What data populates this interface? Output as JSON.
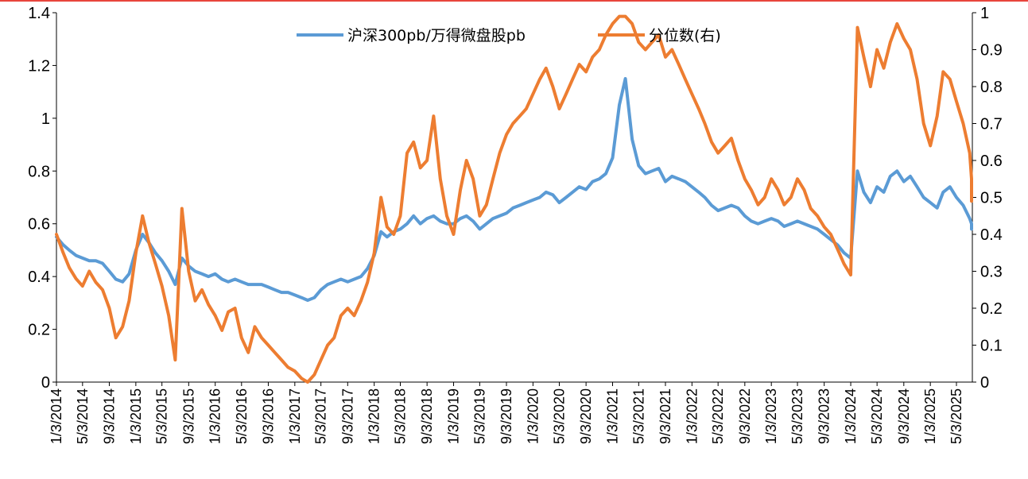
{
  "chart_data": {
    "type": "line",
    "title": "",
    "legend": {
      "placement": "top-center"
    },
    "grid": false,
    "x_ticks": [
      "1/3/2014",
      "5/3/2014",
      "9/3/2014",
      "1/3/2015",
      "5/3/2015",
      "9/3/2015",
      "1/3/2016",
      "5/3/2016",
      "9/3/2016",
      "1/3/2017",
      "5/3/2017",
      "9/3/2017",
      "1/3/2018",
      "5/3/2018",
      "9/3/2018",
      "1/3/2019",
      "5/3/2019",
      "9/3/2019",
      "1/3/2020",
      "5/3/2020",
      "9/3/2020",
      "1/3/2021",
      "5/3/2021",
      "9/3/2021",
      "1/3/2022",
      "5/3/2022",
      "9/3/2022",
      "1/3/2023",
      "5/3/2023",
      "9/3/2023",
      "1/3/2024",
      "5/3/2024",
      "9/3/2024",
      "1/3/2025",
      "5/3/2025"
    ],
    "y_left": {
      "lim": [
        0,
        1.4
      ],
      "ticks": [
        "0",
        "0.2",
        "0.4",
        "0.6",
        "0.8",
        "1",
        "1.2",
        "1.4"
      ]
    },
    "y_right": {
      "lim": [
        0,
        1
      ],
      "ticks": [
        "0",
        "0.1",
        "0.2",
        "0.3",
        "0.4",
        "0.5",
        "0.6",
        "0.7",
        "0.8",
        "0.9",
        "1"
      ]
    },
    "series": [
      {
        "name": "沪深300pb/万得微盘股pb",
        "axis": "left",
        "color": "#5b9bd5",
        "points": [
          [
            "2014-01",
            0.55
          ],
          [
            "2014-02",
            0.52
          ],
          [
            "2014-03",
            0.5
          ],
          [
            "2014-04",
            0.48
          ],
          [
            "2014-05",
            0.47
          ],
          [
            "2014-06",
            0.46
          ],
          [
            "2014-07",
            0.46
          ],
          [
            "2014-08",
            0.45
          ],
          [
            "2014-09",
            0.42
          ],
          [
            "2014-10",
            0.39
          ],
          [
            "2014-11",
            0.38
          ],
          [
            "2014-12",
            0.41
          ],
          [
            "2015-01",
            0.5
          ],
          [
            "2015-02",
            0.56
          ],
          [
            "2015-03",
            0.53
          ],
          [
            "2015-04",
            0.49
          ],
          [
            "2015-05",
            0.46
          ],
          [
            "2015-06",
            0.42
          ],
          [
            "2015-07",
            0.37
          ],
          [
            "2015-08",
            0.47
          ],
          [
            "2015-09",
            0.44
          ],
          [
            "2015-10",
            0.42
          ],
          [
            "2015-11",
            0.41
          ],
          [
            "2015-12",
            0.4
          ],
          [
            "2016-01",
            0.41
          ],
          [
            "2016-02",
            0.39
          ],
          [
            "2016-03",
            0.38
          ],
          [
            "2016-04",
            0.39
          ],
          [
            "2016-05",
            0.38
          ],
          [
            "2016-06",
            0.37
          ],
          [
            "2016-07",
            0.37
          ],
          [
            "2016-08",
            0.37
          ],
          [
            "2016-09",
            0.36
          ],
          [
            "2016-10",
            0.35
          ],
          [
            "2016-11",
            0.34
          ],
          [
            "2016-12",
            0.34
          ],
          [
            "2017-01",
            0.33
          ],
          [
            "2017-02",
            0.32
          ],
          [
            "2017-03",
            0.31
          ],
          [
            "2017-04",
            0.32
          ],
          [
            "2017-05",
            0.35
          ],
          [
            "2017-06",
            0.37
          ],
          [
            "2017-07",
            0.38
          ],
          [
            "2017-08",
            0.39
          ],
          [
            "2017-09",
            0.38
          ],
          [
            "2017-10",
            0.39
          ],
          [
            "2017-11",
            0.4
          ],
          [
            "2017-12",
            0.43
          ],
          [
            "2018-01",
            0.48
          ],
          [
            "2018-02",
            0.57
          ],
          [
            "2018-03",
            0.55
          ],
          [
            "2018-04",
            0.57
          ],
          [
            "2018-05",
            0.58
          ],
          [
            "2018-06",
            0.6
          ],
          [
            "2018-07",
            0.63
          ],
          [
            "2018-08",
            0.6
          ],
          [
            "2018-09",
            0.62
          ],
          [
            "2018-10",
            0.63
          ],
          [
            "2018-11",
            0.61
          ],
          [
            "2018-12",
            0.6
          ],
          [
            "2019-01",
            0.6
          ],
          [
            "2019-02",
            0.62
          ],
          [
            "2019-03",
            0.63
          ],
          [
            "2019-04",
            0.61
          ],
          [
            "2019-05",
            0.58
          ],
          [
            "2019-06",
            0.6
          ],
          [
            "2019-07",
            0.62
          ],
          [
            "2019-08",
            0.63
          ],
          [
            "2019-09",
            0.64
          ],
          [
            "2019-10",
            0.66
          ],
          [
            "2019-11",
            0.67
          ],
          [
            "2019-12",
            0.68
          ],
          [
            "2020-01",
            0.69
          ],
          [
            "2020-02",
            0.7
          ],
          [
            "2020-03",
            0.72
          ],
          [
            "2020-04",
            0.71
          ],
          [
            "2020-05",
            0.68
          ],
          [
            "2020-06",
            0.7
          ],
          [
            "2020-07",
            0.72
          ],
          [
            "2020-08",
            0.74
          ],
          [
            "2020-09",
            0.73
          ],
          [
            "2020-10",
            0.76
          ],
          [
            "2020-11",
            0.77
          ],
          [
            "2020-12",
            0.79
          ],
          [
            "2021-01",
            0.85
          ],
          [
            "2021-02",
            1.05
          ],
          [
            "2021-03",
            1.15
          ],
          [
            "2021-04",
            0.92
          ],
          [
            "2021-05",
            0.82
          ],
          [
            "2021-06",
            0.79
          ],
          [
            "2021-07",
            0.8
          ],
          [
            "2021-08",
            0.81
          ],
          [
            "2021-09",
            0.76
          ],
          [
            "2021-10",
            0.78
          ],
          [
            "2021-11",
            0.77
          ],
          [
            "2021-12",
            0.76
          ],
          [
            "2022-01",
            0.74
          ],
          [
            "2022-02",
            0.72
          ],
          [
            "2022-03",
            0.7
          ],
          [
            "2022-04",
            0.67
          ],
          [
            "2022-05",
            0.65
          ],
          [
            "2022-06",
            0.66
          ],
          [
            "2022-07",
            0.67
          ],
          [
            "2022-08",
            0.66
          ],
          [
            "2022-09",
            0.63
          ],
          [
            "2022-10",
            0.61
          ],
          [
            "2022-11",
            0.6
          ],
          [
            "2022-12",
            0.61
          ],
          [
            "2023-01",
            0.62
          ],
          [
            "2023-02",
            0.61
          ],
          [
            "2023-03",
            0.59
          ],
          [
            "2023-04",
            0.6
          ],
          [
            "2023-05",
            0.61
          ],
          [
            "2023-06",
            0.6
          ],
          [
            "2023-07",
            0.59
          ],
          [
            "2023-08",
            0.58
          ],
          [
            "2023-09",
            0.56
          ],
          [
            "2023-10",
            0.54
          ],
          [
            "2023-11",
            0.52
          ],
          [
            "2023-12",
            0.49
          ],
          [
            "2024-01",
            0.47
          ],
          [
            "2024-02",
            0.8
          ],
          [
            "2024-03",
            0.72
          ],
          [
            "2024-04",
            0.68
          ],
          [
            "2024-05",
            0.74
          ],
          [
            "2024-06",
            0.72
          ],
          [
            "2024-07",
            0.78
          ],
          [
            "2024-08",
            0.8
          ],
          [
            "2024-09",
            0.76
          ],
          [
            "2024-10",
            0.78
          ],
          [
            "2024-11",
            0.74
          ],
          [
            "2024-12",
            0.7
          ],
          [
            "2025-01",
            0.68
          ],
          [
            "2025-02",
            0.66
          ],
          [
            "2025-03",
            0.72
          ],
          [
            "2025-04",
            0.74
          ],
          [
            "2025-05",
            0.7
          ],
          [
            "2025-06",
            0.67
          ],
          [
            "2025-07",
            0.62
          ],
          [
            "2025-08",
            0.6
          ],
          [
            "2025-09",
            0.58
          ]
        ]
      },
      {
        "name": "分位数(右)",
        "axis": "right",
        "color": "#ed7d31",
        "points": [
          [
            "2014-01",
            0.4
          ],
          [
            "2014-02",
            0.35
          ],
          [
            "2014-03",
            0.31
          ],
          [
            "2014-04",
            0.28
          ],
          [
            "2014-05",
            0.26
          ],
          [
            "2014-06",
            0.3
          ],
          [
            "2014-07",
            0.27
          ],
          [
            "2014-08",
            0.25
          ],
          [
            "2014-09",
            0.2
          ],
          [
            "2014-10",
            0.12
          ],
          [
            "2014-11",
            0.15
          ],
          [
            "2014-12",
            0.22
          ],
          [
            "2015-01",
            0.35
          ],
          [
            "2015-02",
            0.45
          ],
          [
            "2015-03",
            0.38
          ],
          [
            "2015-04",
            0.32
          ],
          [
            "2015-05",
            0.26
          ],
          [
            "2015-06",
            0.18
          ],
          [
            "2015-07",
            0.06
          ],
          [
            "2015-08",
            0.47
          ],
          [
            "2015-09",
            0.3
          ],
          [
            "2015-10",
            0.22
          ],
          [
            "2015-11",
            0.25
          ],
          [
            "2015-12",
            0.21
          ],
          [
            "2016-01",
            0.18
          ],
          [
            "2016-02",
            0.14
          ],
          [
            "2016-03",
            0.19
          ],
          [
            "2016-04",
            0.2
          ],
          [
            "2016-05",
            0.12
          ],
          [
            "2016-06",
            0.08
          ],
          [
            "2016-07",
            0.15
          ],
          [
            "2016-08",
            0.12
          ],
          [
            "2016-09",
            0.1
          ],
          [
            "2016-10",
            0.08
          ],
          [
            "2016-11",
            0.06
          ],
          [
            "2016-12",
            0.04
          ],
          [
            "2017-01",
            0.03
          ],
          [
            "2017-02",
            0.01
          ],
          [
            "2017-03",
            0.0
          ],
          [
            "2017-04",
            0.02
          ],
          [
            "2017-05",
            0.06
          ],
          [
            "2017-06",
            0.1
          ],
          [
            "2017-07",
            0.12
          ],
          [
            "2017-08",
            0.18
          ],
          [
            "2017-09",
            0.2
          ],
          [
            "2017-10",
            0.18
          ],
          [
            "2017-11",
            0.22
          ],
          [
            "2017-12",
            0.27
          ],
          [
            "2018-01",
            0.35
          ],
          [
            "2018-02",
            0.5
          ],
          [
            "2018-03",
            0.42
          ],
          [
            "2018-04",
            0.4
          ],
          [
            "2018-05",
            0.45
          ],
          [
            "2018-06",
            0.62
          ],
          [
            "2018-07",
            0.65
          ],
          [
            "2018-08",
            0.58
          ],
          [
            "2018-09",
            0.6
          ],
          [
            "2018-10",
            0.72
          ],
          [
            "2018-11",
            0.55
          ],
          [
            "2018-12",
            0.45
          ],
          [
            "2019-01",
            0.4
          ],
          [
            "2019-02",
            0.52
          ],
          [
            "2019-03",
            0.6
          ],
          [
            "2019-04",
            0.55
          ],
          [
            "2019-05",
            0.45
          ],
          [
            "2019-06",
            0.48
          ],
          [
            "2019-07",
            0.55
          ],
          [
            "2019-08",
            0.62
          ],
          [
            "2019-09",
            0.67
          ],
          [
            "2019-10",
            0.7
          ],
          [
            "2019-11",
            0.72
          ],
          [
            "2019-12",
            0.74
          ],
          [
            "2020-01",
            0.78
          ],
          [
            "2020-02",
            0.82
          ],
          [
            "2020-03",
            0.85
          ],
          [
            "2020-04",
            0.8
          ],
          [
            "2020-05",
            0.74
          ],
          [
            "2020-06",
            0.78
          ],
          [
            "2020-07",
            0.82
          ],
          [
            "2020-08",
            0.86
          ],
          [
            "2020-09",
            0.84
          ],
          [
            "2020-10",
            0.88
          ],
          [
            "2020-11",
            0.9
          ],
          [
            "2020-12",
            0.94
          ],
          [
            "2021-01",
            0.97
          ],
          [
            "2021-02",
            0.99
          ],
          [
            "2021-03",
            0.99
          ],
          [
            "2021-04",
            0.97
          ],
          [
            "2021-05",
            0.92
          ],
          [
            "2021-06",
            0.9
          ],
          [
            "2021-07",
            0.92
          ],
          [
            "2021-08",
            0.94
          ],
          [
            "2021-09",
            0.88
          ],
          [
            "2021-10",
            0.9
          ],
          [
            "2021-11",
            0.86
          ],
          [
            "2021-12",
            0.82
          ],
          [
            "2022-01",
            0.78
          ],
          [
            "2022-02",
            0.74
          ],
          [
            "2022-03",
            0.7
          ],
          [
            "2022-04",
            0.65
          ],
          [
            "2022-05",
            0.62
          ],
          [
            "2022-06",
            0.64
          ],
          [
            "2022-07",
            0.66
          ],
          [
            "2022-08",
            0.6
          ],
          [
            "2022-09",
            0.55
          ],
          [
            "2022-10",
            0.52
          ],
          [
            "2022-11",
            0.48
          ],
          [
            "2022-12",
            0.5
          ],
          [
            "2023-01",
            0.55
          ],
          [
            "2023-02",
            0.52
          ],
          [
            "2023-03",
            0.48
          ],
          [
            "2023-04",
            0.5
          ],
          [
            "2023-05",
            0.55
          ],
          [
            "2023-06",
            0.52
          ],
          [
            "2023-07",
            0.47
          ],
          [
            "2023-08",
            0.45
          ],
          [
            "2023-09",
            0.42
          ],
          [
            "2023-10",
            0.4
          ],
          [
            "2023-11",
            0.36
          ],
          [
            "2023-12",
            0.32
          ],
          [
            "2024-01",
            0.29
          ],
          [
            "2024-02",
            0.96
          ],
          [
            "2024-03",
            0.88
          ],
          [
            "2024-04",
            0.8
          ],
          [
            "2024-05",
            0.9
          ],
          [
            "2024-06",
            0.85
          ],
          [
            "2024-07",
            0.92
          ],
          [
            "2024-08",
            0.97
          ],
          [
            "2024-09",
            0.93
          ],
          [
            "2024-10",
            0.9
          ],
          [
            "2024-11",
            0.82
          ],
          [
            "2024-12",
            0.7
          ],
          [
            "2025-01",
            0.64
          ],
          [
            "2025-02",
            0.72
          ],
          [
            "2025-03",
            0.84
          ],
          [
            "2025-04",
            0.82
          ],
          [
            "2025-05",
            0.76
          ],
          [
            "2025-06",
            0.7
          ],
          [
            "2025-07",
            0.62
          ],
          [
            "2025-08",
            0.55
          ],
          [
            "2025-09",
            0.49
          ]
        ]
      }
    ]
  }
}
